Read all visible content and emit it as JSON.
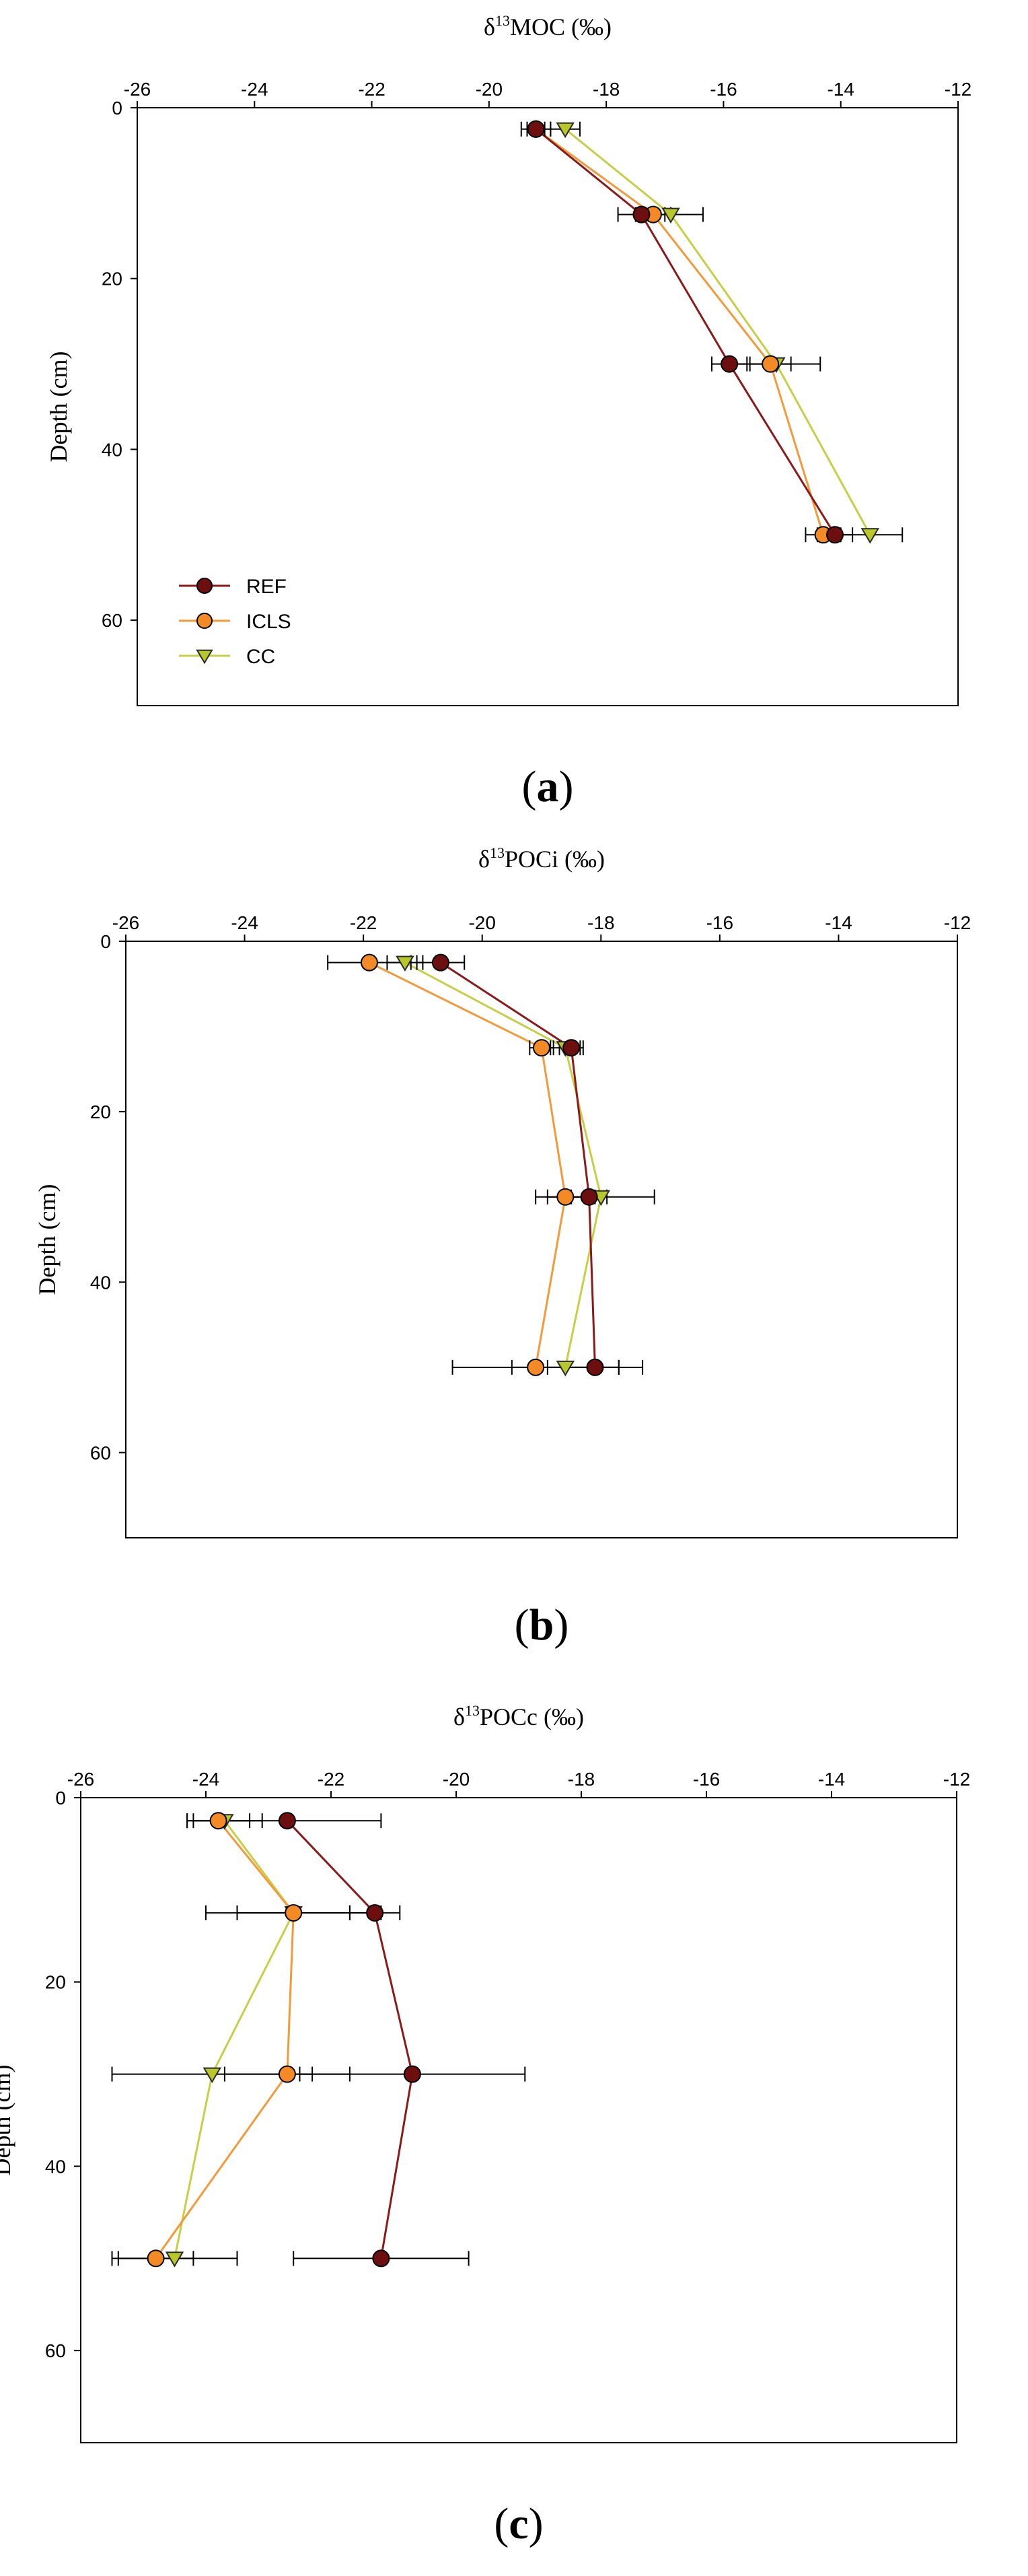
{
  "figure": {
    "colors": {
      "REF": "#6e0f0f",
      "ICLS": "#f38a25",
      "CC": "#b9c72a",
      "line_REF": "#8b1a1a",
      "line_ICLS": "#f39a3a",
      "line_CC": "#c6cf45"
    }
  },
  "chart_data": [
    {
      "type": "line",
      "panel_label": "a",
      "xlabel": {
        "prefix": "δ",
        "sup": "13",
        "main": "MOC (‰)"
      },
      "ylabel": "Depth (cm)",
      "xlim": [
        -26,
        -12
      ],
      "ylim": [
        0,
        70
      ],
      "y_inverted": true,
      "x_axis_position": "top",
      "xticks": [
        -26,
        -24,
        -22,
        -20,
        -18,
        -16,
        -14,
        -12
      ],
      "yticks": [
        0,
        20,
        40,
        60
      ],
      "legend": {
        "position": "bottom-left",
        "entries": [
          "REF",
          "ICLS",
          "CC"
        ]
      },
      "series": [
        {
          "name": "REF",
          "marker": "circle",
          "depths": [
            2.5,
            12.5,
            30,
            50
          ],
          "values": [
            -19.2,
            -17.4,
            -15.9,
            -14.1
          ],
          "error": [
            0.25,
            0.4,
            0.3,
            0.3
          ]
        },
        {
          "name": "ICLS",
          "marker": "circle",
          "depths": [
            2.5,
            12.5,
            30,
            50
          ],
          "values": [
            -19.2,
            -17.2,
            -15.2,
            -14.3
          ],
          "error": [
            0.15,
            0.3,
            0.35,
            0.3
          ]
        },
        {
          "name": "CC",
          "marker": "triangle-down",
          "depths": [
            2.5,
            12.5,
            30,
            50
          ],
          "values": [
            -18.7,
            -16.9,
            -15.1,
            -13.5
          ],
          "error": [
            0.25,
            0.55,
            0.75,
            0.55
          ]
        }
      ]
    },
    {
      "type": "line",
      "panel_label": "b",
      "xlabel": {
        "prefix": "δ",
        "sup": "13",
        "main": "POCi (‰)"
      },
      "ylabel": "Depth (cm)",
      "xlim": [
        -26,
        -12
      ],
      "ylim": [
        0,
        70
      ],
      "y_inverted": true,
      "x_axis_position": "top",
      "xticks": [
        -26,
        -24,
        -22,
        -20,
        -18,
        -16,
        -14,
        -12
      ],
      "yticks": [
        0,
        20,
        40,
        60
      ],
      "legend": null,
      "series": [
        {
          "name": "REF",
          "marker": "circle",
          "depths": [
            2.5,
            12.5,
            30,
            50
          ],
          "values": [
            -20.7,
            -18.5,
            -18.2,
            -18.1
          ],
          "error": [
            0.4,
            0.2,
            0.3,
            0.8
          ]
        },
        {
          "name": "ICLS",
          "marker": "circle",
          "depths": [
            2.5,
            12.5,
            30,
            50
          ],
          "values": [
            -21.9,
            -19.0,
            -18.6,
            -19.1
          ],
          "error": [
            0.7,
            0.2,
            0.5,
            1.4
          ]
        },
        {
          "name": "CC",
          "marker": "triangle-down",
          "depths": [
            2.5,
            12.5,
            30,
            50
          ],
          "values": [
            -21.3,
            -18.6,
            -18.0,
            -18.6
          ],
          "error": [
            0.3,
            0.25,
            0.9,
            0.9
          ]
        }
      ]
    },
    {
      "type": "line",
      "panel_label": "c",
      "xlabel": {
        "prefix": "δ",
        "sup": "13",
        "main": "POCc (‰)"
      },
      "ylabel": "Depth (cm)",
      "xlim": [
        -26,
        -12
      ],
      "ylim": [
        0,
        70
      ],
      "y_inverted": true,
      "x_axis_position": "top",
      "xticks": [
        -26,
        -24,
        -22,
        -20,
        -18,
        -16,
        -14,
        -12
      ],
      "yticks": [
        0,
        20,
        40,
        60
      ],
      "legend": null,
      "series": [
        {
          "name": "REF",
          "marker": "circle",
          "depths": [
            2.5,
            12.5,
            30,
            50
          ],
          "values": [
            -22.7,
            -21.3,
            -20.7,
            -21.2
          ],
          "error": [
            1.5,
            0.4,
            1.8,
            1.4
          ]
        },
        {
          "name": "ICLS",
          "marker": "circle",
          "depths": [
            2.5,
            12.5,
            30,
            50
          ],
          "values": [
            -23.8,
            -22.6,
            -22.7,
            -24.8
          ],
          "error": [
            0.5,
            0.9,
            1.0,
            0.6
          ]
        },
        {
          "name": "CC",
          "marker": "triangle-down",
          "depths": [
            2.5,
            12.5,
            30,
            50
          ],
          "values": [
            -23.7,
            -22.6,
            -23.9,
            -24.5
          ],
          "error": [
            0.6,
            1.4,
            1.6,
            1.0
          ]
        }
      ]
    }
  ]
}
